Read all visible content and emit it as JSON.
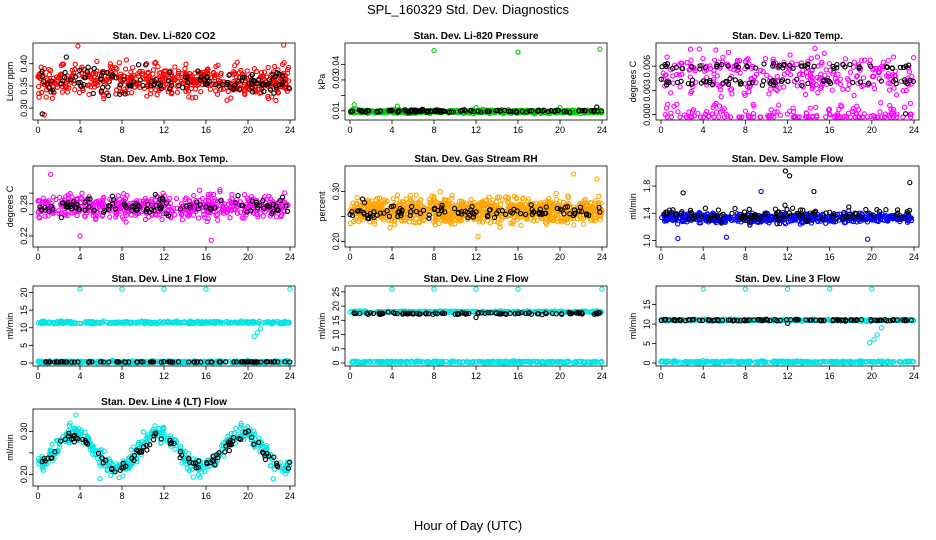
{
  "figure": {
    "title": "SPL_160329  Std. Dev. Diagnostics",
    "xlabel": "Hour of Day (UTC)"
  },
  "colors": {
    "hourly_points": "#000000",
    "co2": "#ff0000",
    "pressure": "#00cc00",
    "temperature": "#ff00ff",
    "rh": "#ffa500",
    "sample_flow": "#0000ff",
    "line_flow": "#00e5e5"
  },
  "chart_data": [
    {
      "type": "scatter",
      "title": "Stan. Dev. Li-820 CO2",
      "ylabel": "Licor ppm",
      "xlim": [
        0,
        24
      ],
      "xticks": [
        0,
        4,
        8,
        12,
        16,
        20,
        24
      ],
      "ylim": [
        0.28,
        0.44
      ],
      "yticks": [
        0.3,
        0.35,
        0.4
      ],
      "ytick_labels": [
        "0.30",
        "0.35",
        "0.40"
      ],
      "series": [
        {
          "role": "minute",
          "color_key": "co2",
          "count": 520,
          "x": [
            0,
            24
          ],
          "y_mean": 0.362,
          "y_spread": 0.035,
          "outliers": [
            [
              0.6,
              0.285
            ],
            [
              3.8,
              0.44
            ],
            [
              23.4,
              0.442
            ]
          ]
        },
        {
          "role": "hourly",
          "color_key": "hourly_points",
          "count": 120,
          "x": [
            0,
            24
          ],
          "y_mean": 0.36,
          "y_spread": 0.03,
          "outliers": [
            [
              0.4,
              0.287
            ],
            [
              2.7,
              0.415
            ]
          ]
        }
      ]
    },
    {
      "type": "scatter",
      "title": "Stan. Dev. Li-820 Pressure",
      "ylabel": "kPa",
      "xlim": [
        0,
        24
      ],
      "xticks": [
        0,
        4,
        8,
        12,
        16,
        20,
        24
      ],
      "ylim": [
        0.006,
        0.052
      ],
      "yticks": [
        0.01,
        0.02,
        0.03,
        0.04
      ],
      "ytick_labels": [
        "0.01",
        "",
        "0.03",
        "0.04"
      ],
      "series": [
        {
          "role": "minute",
          "color_key": "pressure",
          "count": 420,
          "x": [
            0,
            24
          ],
          "y_mean": 0.0095,
          "y_spread": 0.0012,
          "outliers": [
            [
              0.4,
              0.014
            ],
            [
              8.0,
              0.049
            ],
            [
              16.0,
              0.048
            ],
            [
              23.8,
              0.05
            ],
            [
              12.0,
              0.012
            ],
            [
              20.0,
              0.012
            ],
            [
              4.5,
              0.013
            ]
          ]
        },
        {
          "role": "hourly",
          "color_key": "hourly_points",
          "count": 120,
          "x": [
            0,
            24
          ],
          "y_mean": 0.0098,
          "y_spread": 0.0008,
          "outliers": [
            [
              23.5,
              0.0125
            ]
          ]
        }
      ]
    },
    {
      "type": "scatter",
      "title": "Stan. Dev. Li-820 Temp.",
      "ylabel": "degrees C",
      "xlim": [
        0,
        24
      ],
      "xticks": [
        0,
        4,
        8,
        12,
        16,
        20,
        24
      ],
      "ylim": [
        -0.0003,
        0.0085
      ],
      "yticks": [
        0.0,
        0.003,
        0.006
      ],
      "ytick_labels": [
        "0.000",
        "0.003",
        "0.006"
      ],
      "series": [
        {
          "role": "minute",
          "color_key": "temperature",
          "count": 420,
          "x": [
            0,
            24
          ],
          "levels": [
            0.0,
            0.004,
            0.006
          ],
          "jitter": 0.0015,
          "outliers": [
            [
              2.8,
              0.0081
            ],
            [
              14.6,
              0.0082
            ],
            [
              5.2,
              0.008
            ]
          ]
        },
        {
          "role": "hourly",
          "color_key": "hourly_points",
          "count": 110,
          "x": [
            0,
            24
          ],
          "levels": [
            0.004,
            0.006
          ],
          "jitter": 0.0004,
          "outliers": [
            [
              23.2,
              0.0001
            ]
          ]
        }
      ]
    },
    {
      "type": "scatter",
      "title": "Stan. Dev. Amb. Box Temp.",
      "ylabel": "degrees C",
      "xlim": [
        0,
        24
      ],
      "xticks": [
        0,
        4,
        8,
        12,
        16,
        20,
        24
      ],
      "ylim": [
        0.205,
        0.345
      ],
      "yticks": [
        0.22,
        0.26,
        0.28,
        0.3
      ],
      "ytick_labels": [
        "0.22",
        "",
        "0.28",
        ""
      ],
      "series": [
        {
          "role": "minute",
          "color_key": "temperature",
          "count": 520,
          "x": [
            0,
            24
          ],
          "y_mean": 0.275,
          "y_spread": 0.022,
          "outliers": [
            [
              16.5,
              0.212
            ],
            [
              4.0,
              0.22
            ],
            [
              1.2,
              0.335
            ]
          ]
        },
        {
          "role": "hourly",
          "color_key": "hourly_points",
          "count": 110,
          "x": [
            0,
            24
          ],
          "y_mean": 0.275,
          "y_spread": 0.018,
          "outliers": []
        }
      ]
    },
    {
      "type": "scatter",
      "title": "Stan. Dev. Gas Stream RH",
      "ylabel": "percent",
      "xlim": [
        0,
        24
      ],
      "xticks": [
        0,
        4,
        8,
        12,
        16,
        20,
        24
      ],
      "ylim": [
        0.195,
        0.345
      ],
      "yticks": [
        0.2,
        0.25,
        0.3
      ],
      "ytick_labels": [
        "0.20",
        "",
        "0.30"
      ],
      "series": [
        {
          "role": "minute",
          "color_key": "rh",
          "count": 900,
          "x": [
            0,
            24
          ],
          "y_mean": 0.262,
          "y_spread": 0.025,
          "outliers": [
            [
              21.3,
              0.335
            ],
            [
              23.5,
              0.325
            ],
            [
              12.2,
              0.21
            ]
          ]
        },
        {
          "role": "hourly",
          "color_key": "hourly_points",
          "count": 110,
          "x": [
            0,
            24
          ],
          "y_mean": 0.26,
          "y_spread": 0.012,
          "outliers": [
            [
              1.2,
              0.285
            ]
          ]
        }
      ]
    },
    {
      "type": "scatter",
      "title": "Stan. Dev. Sample Flow",
      "ylabel": "ml/min",
      "xlim": [
        0,
        24
      ],
      "xticks": [
        0,
        4,
        8,
        12,
        16,
        20,
        24
      ],
      "ylim": [
        0.95,
        2.05
      ],
      "yticks": [
        1.0,
        1.4,
        1.8
      ],
      "ytick_labels": [
        "1.0",
        "1.4",
        "1.8"
      ],
      "series": [
        {
          "role": "minute",
          "color_key": "sample_flow",
          "count": 520,
          "x": [
            0,
            24
          ],
          "y_mean": 1.33,
          "y_spread": 0.07,
          "outliers": [
            [
              9.5,
              1.72
            ],
            [
              6.2,
              1.05
            ],
            [
              19.6,
              1.02
            ],
            [
              1.6,
              1.03
            ]
          ]
        },
        {
          "role": "hourly",
          "color_key": "hourly_points",
          "count": 110,
          "x": [
            0,
            24
          ],
          "y_mean": 1.38,
          "y_spread": 0.12,
          "outliers": [
            [
              11.8,
              2.02
            ],
            [
              12.2,
              1.95
            ],
            [
              23.6,
              1.85
            ],
            [
              2.1,
              1.7
            ],
            [
              14.5,
              1.72
            ]
          ]
        }
      ]
    },
    {
      "type": "scatter",
      "title": "Stan. Dev. Line 1 Flow",
      "ylabel": "ml/min",
      "xlim": [
        0,
        24
      ],
      "xticks": [
        0,
        4,
        8,
        12,
        16,
        20,
        24
      ],
      "ylim": [
        0,
        21
      ],
      "yticks": [
        0,
        5,
        10,
        15,
        20
      ],
      "ytick_labels": [
        "0",
        "5",
        "10",
        "15",
        "20"
      ],
      "series": [
        {
          "role": "minute",
          "color_key": "line_flow",
          "count": 640,
          "x": [
            0,
            24
          ],
          "levels": [
            11.5,
            0.3
          ],
          "jitter": 0.35,
          "outliers": [
            [
              4.0,
              21.0
            ],
            [
              8.0,
              21.0
            ],
            [
              12.0,
              21.0
            ],
            [
              16.0,
              21.0
            ],
            [
              24.0,
              21.0
            ],
            [
              20.6,
              7.5
            ],
            [
              20.9,
              8.6
            ],
            [
              21.2,
              9.7
            ]
          ]
        },
        {
          "role": "hourly",
          "color_key": "hourly_points",
          "count": 90,
          "x": [
            0,
            24
          ],
          "levels": [
            0.3
          ],
          "jitter": 0.05,
          "outliers": []
        }
      ]
    },
    {
      "type": "scatter",
      "title": "Stan. Dev. Line 2 Flow",
      "ylabel": "ml/min",
      "xlim": [
        0,
        24
      ],
      "xticks": [
        0,
        4,
        8,
        12,
        16,
        20,
        24
      ],
      "ylim": [
        0,
        26
      ],
      "yticks": [
        0,
        5,
        10,
        15,
        20,
        25
      ],
      "ytick_labels": [
        "0",
        "5",
        "10",
        "15",
        "20",
        "25"
      ],
      "series": [
        {
          "role": "minute",
          "color_key": "line_flow",
          "count": 640,
          "x": [
            0,
            24
          ],
          "levels": [
            18.0,
            0.4
          ],
          "jitter": 0.3,
          "outliers": [
            [
              4.0,
              26.0
            ],
            [
              8.0,
              26.0
            ],
            [
              12.0,
              26.0
            ],
            [
              16.0,
              26.0
            ],
            [
              24.0,
              26.0
            ]
          ]
        },
        {
          "role": "hourly",
          "color_key": "hourly_points",
          "count": 110,
          "x": [
            0,
            24
          ],
          "levels": [
            17.4
          ],
          "jitter": 0.35,
          "outliers": [
            [
              12.0,
              16.0
            ]
          ]
        }
      ]
    },
    {
      "type": "scatter",
      "title": "Stan. Dev. Line 3 Flow",
      "ylabel": "ml/min",
      "xlim": [
        0,
        24
      ],
      "xticks": [
        0,
        4,
        8,
        12,
        16,
        20,
        24
      ],
      "ylim": [
        0,
        19
      ],
      "yticks": [
        0,
        5,
        10,
        15
      ],
      "ytick_labels": [
        "0",
        "5",
        "10",
        "15"
      ],
      "series": [
        {
          "role": "minute",
          "color_key": "line_flow",
          "count": 640,
          "x": [
            0,
            24
          ],
          "levels": [
            11.0,
            0.3
          ],
          "jitter": 0.25,
          "outliers": [
            [
              4.0,
              19.0
            ],
            [
              8.0,
              19.0
            ],
            [
              12.0,
              19.0
            ],
            [
              16.0,
              19.0
            ],
            [
              20.0,
              19.0
            ],
            [
              20.2,
              6.0
            ],
            [
              20.5,
              7.2
            ],
            [
              19.8,
              5.2
            ],
            [
              20.9,
              9.0
            ]
          ]
        },
        {
          "role": "hourly",
          "color_key": "hourly_points",
          "count": 110,
          "x": [
            0,
            24
          ],
          "levels": [
            11.0
          ],
          "jitter": 0.2,
          "outliers": [
            [
              12.0,
              10.2
            ]
          ]
        }
      ]
    },
    {
      "type": "scatter",
      "title": "Stan. Dev. Line 4 (LT) Flow",
      "ylabel": "ml/min",
      "xlim": [
        0,
        24
      ],
      "xticks": [
        0,
        4,
        8,
        12,
        16,
        20,
        24
      ],
      "ylim": [
        0.18,
        0.345
      ],
      "yticks": [
        0.2,
        0.25,
        0.3
      ],
      "ytick_labels": [
        "0.20",
        "",
        "0.30"
      ],
      "series": [
        {
          "role": "minute",
          "color_key": "line_flow",
          "count": 440,
          "x": [
            0,
            24
          ],
          "wave": {
            "base": 0.255,
            "amp": 0.04,
            "period": 8,
            "phase": 1.5
          },
          "y_spread": 0.02,
          "outliers": [
            [
              3.6,
              0.338
            ],
            [
              5.9,
              0.19
            ],
            [
              22.4,
              0.19
            ]
          ]
        },
        {
          "role": "hourly",
          "color_key": "hourly_points",
          "count": 110,
          "x": [
            0,
            24
          ],
          "wave": {
            "base": 0.252,
            "amp": 0.035,
            "period": 8,
            "phase": 1.5
          },
          "y_spread": 0.015,
          "outliers": []
        }
      ]
    }
  ]
}
